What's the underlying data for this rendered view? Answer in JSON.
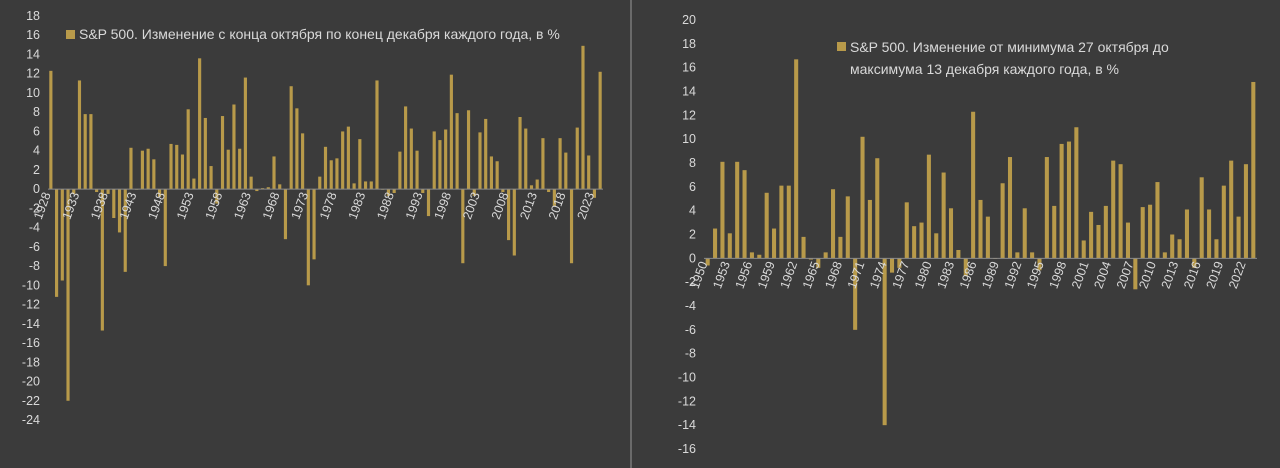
{
  "colors": {
    "bar": "#b89a4a",
    "background": "#3b3b3b",
    "text": "#d9d9d9",
    "axis": "#8a8a8a"
  },
  "chart_data": [
    {
      "type": "bar",
      "legend": "S&P 500. Изменение с конца октября по конец декабря каждого года, в %",
      "legend_placement": "top-left",
      "grid": false,
      "ylim": [
        -24,
        18
      ],
      "yticks": [
        18,
        16,
        14,
        12,
        10,
        8,
        6,
        4,
        2,
        0,
        -2,
        -4,
        -6,
        -8,
        -10,
        -12,
        -14,
        -16,
        -18,
        -20,
        -22,
        -24
      ],
      "xtick_labels": [
        "1928",
        "1933",
        "1938",
        "1943",
        "1948",
        "1953",
        "1958",
        "1963",
        "1968",
        "1973",
        "1978",
        "1983",
        "1988",
        "1993",
        "1998",
        "2003",
        "2008",
        "2013",
        "2018",
        "2023"
      ],
      "x_start": 1928,
      "x_end": 2024,
      "values": [
        12.3,
        -11.2,
        -9.5,
        -22.0,
        -0.5,
        11.3,
        7.8,
        7.8,
        -0.3,
        -14.7,
        -0.5,
        -3.0,
        -4.5,
        -8.6,
        4.3,
        0.0,
        4.0,
        4.2,
        3.1,
        -0.8,
        -8.0,
        4.7,
        4.6,
        3.6,
        8.3,
        1.1,
        13.6,
        7.4,
        2.4,
        -1.5,
        7.6,
        4.1,
        8.8,
        4.2,
        11.6,
        1.3,
        -0.2,
        0.1,
        0.2,
        3.4,
        0.5,
        -5.2,
        10.7,
        8.4,
        5.8,
        -10.0,
        -7.3,
        1.3,
        4.4,
        3.0,
        3.2,
        6.0,
        6.5,
        0.6,
        5.2,
        0.8,
        0.8,
        11.3,
        0.0,
        -0.7,
        -0.4,
        3.9,
        8.6,
        6.3,
        4.0,
        -0.4,
        -2.8,
        6.0,
        5.1,
        6.2,
        11.9,
        7.9,
        -7.7,
        8.2,
        -0.7,
        5.9,
        7.3,
        3.4,
        2.9,
        -0.3,
        -5.3,
        -6.9,
        7.5,
        6.3,
        0.4,
        1.0,
        5.3,
        -0.3,
        -1.8,
        5.3,
        3.8,
        -7.7,
        6.4,
        14.9,
        3.5,
        -0.9,
        12.2
      ]
    },
    {
      "type": "bar",
      "legend_line1": "S&P 500. Изменение от минимума 27 октября до",
      "legend_line2": "максимума 13 декабря каждого года, в %",
      "legend_placement": "top",
      "grid": false,
      "ylim": [
        -16,
        20
      ],
      "yticks": [
        20,
        18,
        16,
        14,
        12,
        10,
        8,
        6,
        4,
        2,
        0,
        -2,
        -4,
        -6,
        -8,
        -10,
        -12,
        -14,
        -16
      ],
      "xtick_labels": [
        "1950",
        "1953",
        "1956",
        "1959",
        "1962",
        "1965",
        "1968",
        "1971",
        "1974",
        "1977",
        "1980",
        "1983",
        "1986",
        "1989",
        "1992",
        "1995",
        "1998",
        "2001",
        "2004",
        "2007",
        "2010",
        "2013",
        "2016",
        "2019",
        "2022"
      ],
      "x_start": 1950,
      "x_end": 2023,
      "values": [
        -0.6,
        2.5,
        8.1,
        2.1,
        8.1,
        7.4,
        0.5,
        0.3,
        5.5,
        2.5,
        6.1,
        6.1,
        16.7,
        1.8,
        -0.1,
        -0.8,
        0.5,
        5.8,
        1.8,
        5.2,
        -6.0,
        10.2,
        4.9,
        8.4,
        -14.0,
        -1.2,
        -0.8,
        4.7,
        2.7,
        3.0,
        8.7,
        2.1,
        7.2,
        4.2,
        0.7,
        -1.5,
        12.3,
        4.9,
        3.5,
        0.0,
        6.3,
        8.5,
        0.5,
        4.2,
        0.5,
        -1.0,
        8.5,
        4.4,
        9.6,
        9.8,
        11.0,
        1.5,
        3.9,
        2.8,
        4.4,
        8.2,
        7.9,
        3.0,
        -2.6,
        4.3,
        4.5,
        6.4,
        0.5,
        2.0,
        1.6,
        4.1,
        -0.8,
        6.8,
        4.1,
        1.6,
        6.1,
        8.2,
        3.5,
        7.9,
        14.8
      ]
    }
  ]
}
